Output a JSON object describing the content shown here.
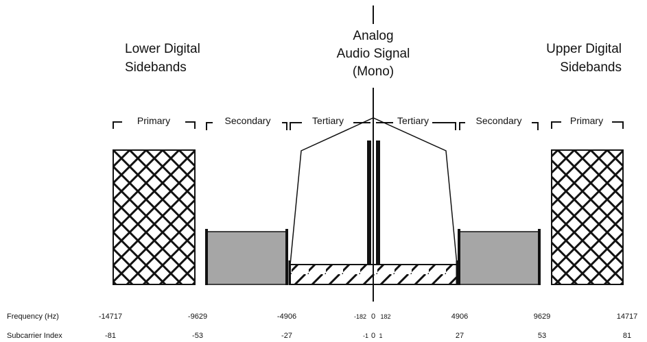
{
  "title_center": [
    "Analog",
    "Audio Signal",
    "(Mono)"
  ],
  "left_title": [
    "Lower Digital",
    "Sidebands"
  ],
  "right_title": [
    "Upper Digital",
    "Sidebands"
  ],
  "segments": {
    "primary_left": "Primary",
    "secondary_left": "Secondary",
    "tertiary_left": "Tertiary",
    "tertiary_right": "Tertiary",
    "secondary_right": "Secondary",
    "primary_right": "Primary"
  },
  "rows": {
    "frequency_label": "Frequency (Hz)",
    "subcarrier_label": "Subcarrier Index"
  },
  "frequency_ticks": [
    "-14717",
    "-9629",
    "-4906",
    "-182",
    "0",
    "182",
    "4906",
    "9629",
    "14717"
  ],
  "subcarrier_ticks": [
    "-81",
    "-53",
    "-27",
    "-1",
    "0",
    "1",
    "27",
    "53",
    "81"
  ],
  "colors": {
    "line": "#111111",
    "secondary_fill": "#a6a6a6",
    "background": "#ffffff"
  }
}
